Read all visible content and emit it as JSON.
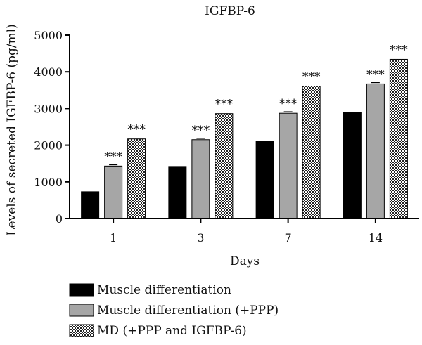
{
  "chart_data": {
    "type": "bar",
    "title": "IGFBP-6",
    "xlabel": "Days",
    "ylabel": "Levels of secreted IGFBP-6 (pg/ml)",
    "categories": [
      "1",
      "3",
      "7",
      "14"
    ],
    "ylim": [
      0,
      5000
    ],
    "yticks": [
      "0",
      "1000",
      "2000",
      "3000",
      "4000",
      "5000"
    ],
    "grid": false,
    "legend_position": "bottom",
    "series": [
      {
        "name": "Muscle differentiation",
        "values": [
          730,
          1420,
          2110,
          2890
        ],
        "color": "#000000",
        "fill": "solid black"
      },
      {
        "name": "Muscle differentiation (+PPP)",
        "values": [
          1430,
          2150,
          2870,
          3670
        ],
        "color": "#a6a6a6",
        "fill": "solid gray"
      },
      {
        "name": "MD (+PPP and IGFBP-6)",
        "values": [
          2170,
          2860,
          3610,
          4340
        ],
        "color": "#555555",
        "fill": "checkered"
      }
    ],
    "annotations": [
      {
        "series": 1,
        "category": "1",
        "text": "***"
      },
      {
        "series": 2,
        "category": "1",
        "text": "***"
      },
      {
        "series": 1,
        "category": "3",
        "text": "***"
      },
      {
        "series": 2,
        "category": "3",
        "text": "***"
      },
      {
        "series": 1,
        "category": "7",
        "text": "***"
      },
      {
        "series": 2,
        "category": "7",
        "text": "***"
      },
      {
        "series": 1,
        "category": "14",
        "text": "***"
      },
      {
        "series": 2,
        "category": "14",
        "text": "***"
      }
    ]
  }
}
